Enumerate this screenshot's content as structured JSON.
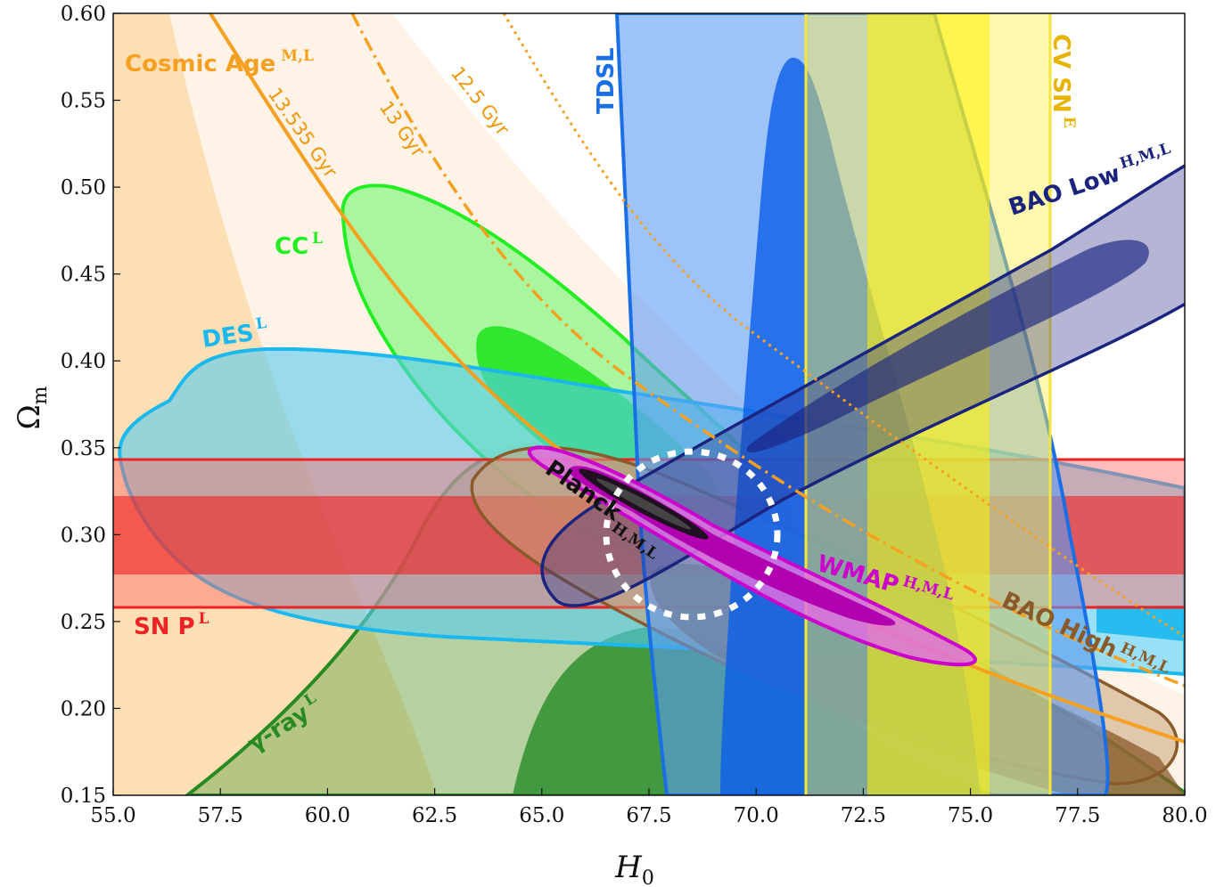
{
  "chart_data": {
    "type": "contour",
    "xlabel": "H_0",
    "ylabel": "Ω_m",
    "xlim": [
      55.0,
      80.0
    ],
    "ylim": [
      0.15,
      0.6
    ],
    "x_ticks": [
      "55.0",
      "57.5",
      "60.0",
      "62.5",
      "65.0",
      "67.5",
      "70.0",
      "72.5",
      "75.0",
      "77.5",
      "80.0"
    ],
    "y_ticks": [
      "0.15",
      "0.20",
      "0.25",
      "0.30",
      "0.35",
      "0.40",
      "0.45",
      "0.50",
      "0.55",
      "0.60"
    ],
    "grid": false,
    "series": [
      {
        "name": "Cosmic Age",
        "sup": "M,L",
        "color": "#f5a020"
      },
      {
        "name": "CC",
        "sup": "L",
        "color": "#22ee22"
      },
      {
        "name": "DES",
        "sup": "L",
        "color": "#1ab8ee"
      },
      {
        "name": "SN P",
        "sup": "L",
        "color": "#ee2222",
        "band_68": [
          0.278,
          0.321
        ],
        "band_95": [
          0.258,
          0.343
        ]
      },
      {
        "name": "γ-ray",
        "sup": "L",
        "color": "#2a8a22"
      },
      {
        "name": "Planck",
        "sup": "H,M,L",
        "color": "#000000",
        "center": [
          67.4,
          0.315
        ]
      },
      {
        "name": "WMAP",
        "sup": "H,M,L",
        "color": "#cc00cc"
      },
      {
        "name": "BAO Low",
        "sup": "H,M,L",
        "color": "#1a237e"
      },
      {
        "name": "BAO High",
        "sup": "H,M,L",
        "color": "#8a5a2a"
      },
      {
        "name": "TDSL",
        "sup": "",
        "color": "#1a6ee6"
      },
      {
        "name": "CV SN",
        "sup": "E",
        "color": "#e6c800",
        "band_68": [
          72.6,
          75.5
        ],
        "band_95": [
          71.2,
          76.9
        ]
      }
    ],
    "annotations": [
      {
        "text": "13.535 Gyr",
        "age_gyr": 13.535,
        "style": "solid"
      },
      {
        "text": "13 Gyr",
        "age_gyr": 13.0,
        "style": "dash-dot"
      },
      {
        "text": "12.5 Gyr",
        "age_gyr": 12.5,
        "style": "dotted"
      }
    ]
  }
}
